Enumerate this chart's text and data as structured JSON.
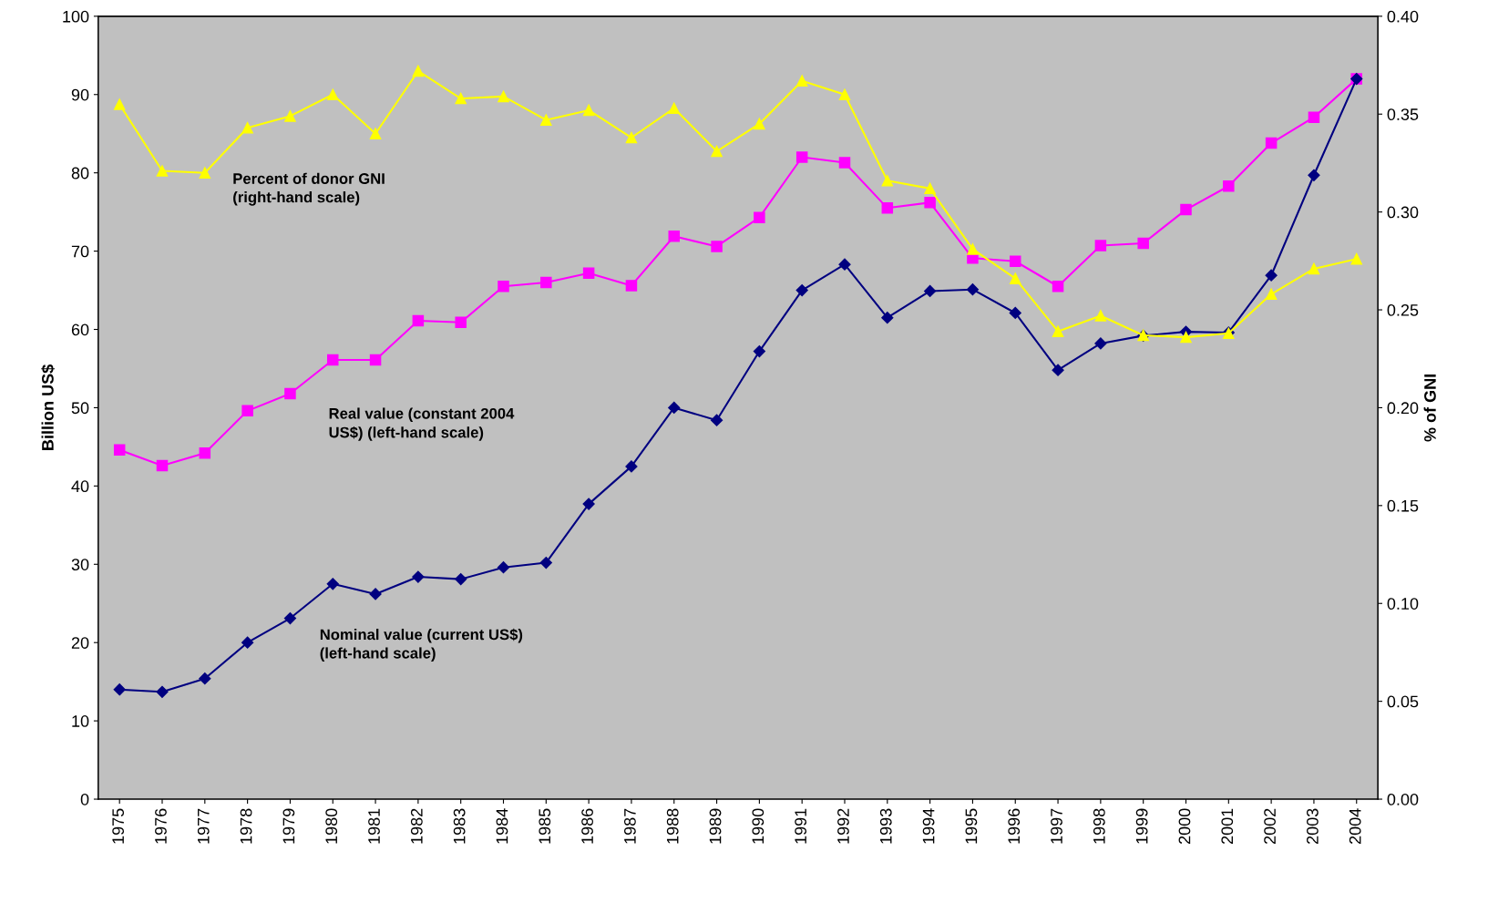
{
  "chart_data": {
    "type": "line",
    "ylabel": "Billion US$",
    "y2label": "% of GNI",
    "categories": [
      "1975",
      "1976",
      "1977",
      "1978",
      "1979",
      "1980",
      "1981",
      "1982",
      "1983",
      "1984",
      "1985",
      "1986",
      "1987",
      "1988",
      "1989",
      "1990",
      "1991",
      "1992",
      "1993",
      "1994",
      "1995",
      "1996",
      "1997",
      "1998",
      "1999",
      "2000",
      "2001",
      "2002",
      "2003",
      "2004"
    ],
    "series": [
      {
        "name": "Percent of donor GNI\n(right-hand scale)",
        "color": "#ffff00",
        "marker": "triangle",
        "axis": "y2",
        "values": [
          0.355,
          0.321,
          0.32,
          0.343,
          0.349,
          0.36,
          0.34,
          0.372,
          0.358,
          0.359,
          0.347,
          0.352,
          0.338,
          0.353,
          0.331,
          0.345,
          0.367,
          0.36,
          0.316,
          0.312,
          0.281,
          0.266,
          0.239,
          0.247,
          0.237,
          0.236,
          0.238,
          0.258,
          0.271,
          0.276
        ]
      },
      {
        "name": "Real value (constant 2004\nUS$) (left-hand scale)",
        "color": "#ff00ff",
        "marker": "square",
        "values": [
          44.6,
          42.6,
          44.2,
          49.6,
          51.8,
          56.1,
          56.1,
          61.1,
          60.9,
          65.5,
          66.0,
          67.2,
          65.6,
          71.9,
          70.6,
          74.3,
          82.0,
          81.3,
          75.5,
          76.2,
          69.1,
          68.7,
          65.5,
          70.7,
          71.0,
          75.3,
          78.3,
          83.8,
          87.1,
          92.0
        ]
      },
      {
        "name": "Nominal value (current US$)\n(left-hand scale)",
        "color": "#000080",
        "marker": "diamond",
        "values": [
          14.0,
          13.7,
          15.4,
          20.0,
          23.1,
          27.5,
          26.2,
          28.4,
          28.1,
          29.6,
          30.2,
          37.7,
          42.5,
          50.0,
          48.4,
          57.2,
          65.0,
          68.3,
          61.5,
          64.9,
          65.1,
          62.1,
          54.8,
          58.2,
          59.2,
          59.7,
          59.6,
          66.9,
          79.7,
          92.0
        ]
      }
    ],
    "ylim": [
      0,
      100
    ],
    "yticks": [
      0,
      10,
      20,
      30,
      40,
      50,
      60,
      70,
      80,
      90,
      100
    ],
    "y2lim": [
      0,
      0.4
    ],
    "y2ticks": [
      {
        "value": 0,
        "label": "0.00"
      },
      {
        "value": 0.05,
        "label": "0.05"
      },
      {
        "value": 0.1,
        "label": "0.10"
      },
      {
        "value": 0.15,
        "label": "0.15"
      },
      {
        "value": 0.2,
        "label": "0.20"
      },
      {
        "value": 0.25,
        "label": "0.25"
      },
      {
        "value": 0.3,
        "label": "0.30"
      },
      {
        "value": 0.35,
        "label": "0.35"
      },
      {
        "value": 0.4,
        "label": "0.40"
      }
    ],
    "grid": false,
    "legend": false
  }
}
